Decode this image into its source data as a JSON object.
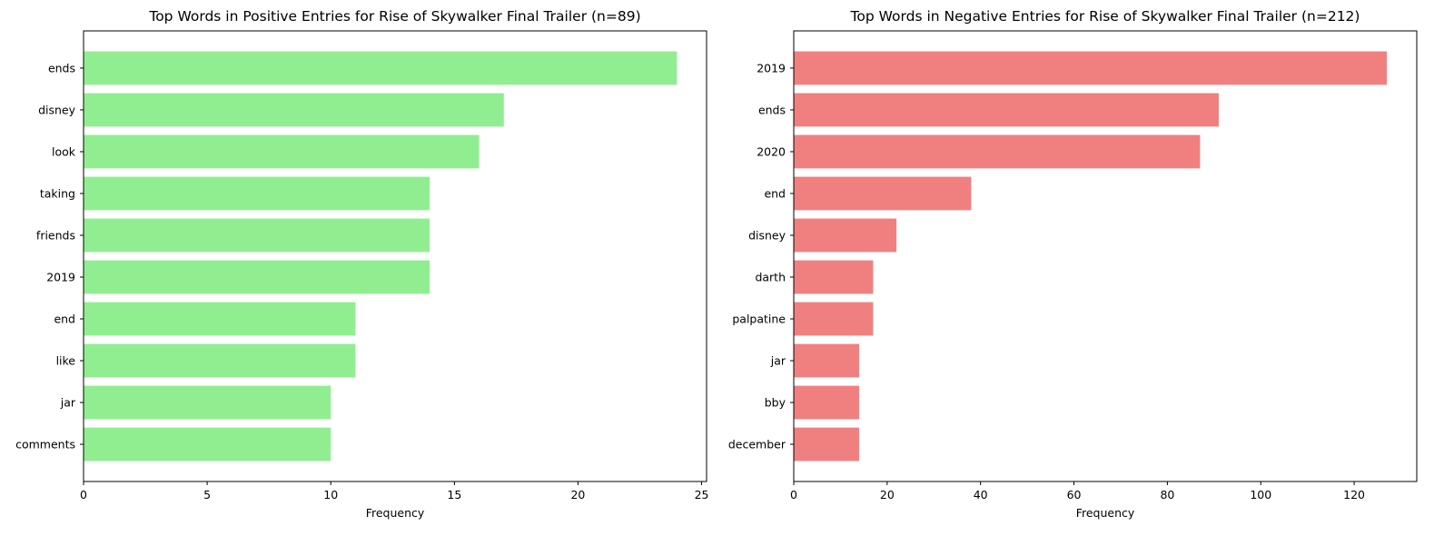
{
  "chart_data": [
    {
      "type": "bar",
      "orientation": "horizontal",
      "title": "Top Words in Positive Entries for Rise of Skywalker Final Trailer (n=89)",
      "xlabel": "Frequency",
      "ylabel": "",
      "categories": [
        "ends",
        "disney",
        "look",
        "taking",
        "friends",
        "2019",
        "end",
        "like",
        "jar",
        "comments"
      ],
      "values": [
        24,
        17,
        16,
        14,
        14,
        14,
        11,
        11,
        10,
        10
      ],
      "xlim": [
        0,
        25.2
      ],
      "xticks": [
        0,
        5,
        10,
        15,
        20,
        25
      ],
      "bar_color": "#90ee90",
      "grid": false,
      "legend": "none"
    },
    {
      "type": "bar",
      "orientation": "horizontal",
      "title": "Top Words in Negative Entries for Rise of Skywalker Final Trailer (n=212)",
      "xlabel": "Frequency",
      "ylabel": "",
      "categories": [
        "2019",
        "ends",
        "2020",
        "end",
        "disney",
        "darth",
        "palpatine",
        "jar",
        "bby",
        "december"
      ],
      "values": [
        127,
        91,
        87,
        38,
        22,
        17,
        17,
        14,
        14,
        14
      ],
      "xlim": [
        0,
        133.4
      ],
      "xticks": [
        0,
        20,
        40,
        60,
        80,
        100,
        120
      ],
      "bar_color": "#f08080",
      "grid": false,
      "legend": "none"
    }
  ]
}
